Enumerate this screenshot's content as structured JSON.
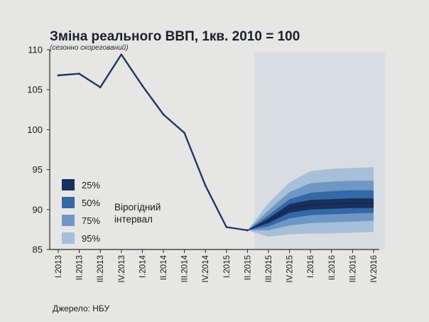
{
  "chart_data": {
    "type": "line",
    "title": "Зміна реального ВВП, 1кв. 2010 = 100",
    "subtitle": "(сезонно скорегований)",
    "source": "Джерело: НБУ",
    "categories": [
      "I.2013",
      "II.2013",
      "III.2013",
      "IV.2013",
      "I.2014",
      "II.2014",
      "III.2014",
      "IV.2014",
      "I.2015",
      "II.2015",
      "III.2015",
      "IV.2015",
      "I.2016",
      "II.2016",
      "III.2016",
      "IV.2016"
    ],
    "yticks": [
      85,
      90,
      95,
      100,
      105,
      110
    ],
    "ylim": [
      85,
      110
    ],
    "grid": false,
    "series": [
      {
        "values": [
          106.8,
          107.0,
          105.3,
          109.4,
          105.5,
          101.9,
          99.6,
          93.0,
          87.8,
          87.4,
          null,
          null,
          null,
          null,
          null,
          null
        ]
      }
    ],
    "forecast": {
      "start_index": 9,
      "start_value": 87.4,
      "central": [
        87.4,
        88.6,
        90.1,
        90.6,
        90.7,
        90.8,
        90.8
      ],
      "bands": [
        {
          "label": "95%",
          "color": "#a7bfd8",
          "lower": [
            87.4,
            86.6,
            86.9,
            87.0,
            87.0,
            87.1,
            87.2
          ],
          "upper": [
            87.4,
            90.8,
            93.4,
            94.8,
            95.1,
            95.2,
            95.3
          ]
        },
        {
          "label": "75%",
          "color": "#6f97c4",
          "lower": [
            87.4,
            87.4,
            88.0,
            88.3,
            88.4,
            88.5,
            88.6
          ],
          "upper": [
            87.4,
            89.9,
            92.2,
            93.3,
            93.5,
            93.6,
            93.6
          ]
        },
        {
          "label": "50%",
          "color": "#3468a6",
          "lower": [
            87.4,
            87.9,
            88.9,
            89.3,
            89.4,
            89.5,
            89.6
          ],
          "upper": [
            87.4,
            89.3,
            91.3,
            92.1,
            92.3,
            92.4,
            92.4
          ]
        },
        {
          "label": "25%",
          "color": "#17305d",
          "lower": [
            87.4,
            88.3,
            89.6,
            90.0,
            90.1,
            90.2,
            90.2
          ],
          "upper": [
            87.4,
            88.9,
            90.7,
            91.2,
            91.3,
            91.4,
            91.4
          ]
        }
      ]
    },
    "legend": {
      "position": "left-center",
      "caption": "Вірогідний інтервал",
      "entries": [
        {
          "label": "25%",
          "color": "#17305d"
        },
        {
          "label": "50%",
          "color": "#3468a6"
        },
        {
          "label": "75%",
          "color": "#6f97c4"
        },
        {
          "label": "95%",
          "color": "#a7bfd8"
        }
      ]
    },
    "colors": {
      "line": "#1d3a66",
      "axis": "#2a2a2a",
      "forecast_area": "#d8dde2"
    }
  }
}
